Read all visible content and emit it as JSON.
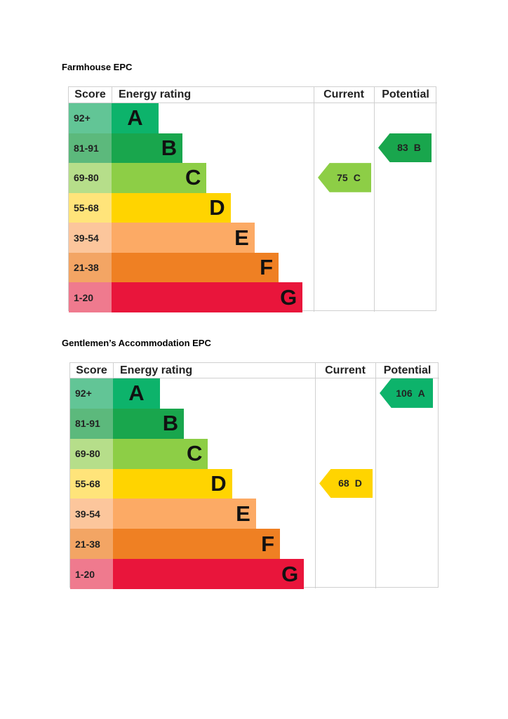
{
  "sections": [
    {
      "title": "Farmhouse EPC",
      "headers": {
        "score": "Score",
        "rating": "Energy rating",
        "current": "Current",
        "potential": "Potential"
      },
      "bands": [
        {
          "score": "92+",
          "letter": "A"
        },
        {
          "score": "81-91",
          "letter": "B"
        },
        {
          "score": "69-80",
          "letter": "C"
        },
        {
          "score": "55-68",
          "letter": "D"
        },
        {
          "score": "39-54",
          "letter": "E"
        },
        {
          "score": "21-38",
          "letter": "F"
        },
        {
          "score": "1-20",
          "letter": "G"
        }
      ],
      "current": {
        "score": "75",
        "letter": "C"
      },
      "potential": {
        "score": "83",
        "letter": "B"
      }
    },
    {
      "title": "Gentlemen’s Accommodation EPC",
      "headers": {
        "score": "Score",
        "rating": "Energy rating",
        "current": "Current",
        "potential": "Potential"
      },
      "bands": [
        {
          "score": "92+",
          "letter": "A"
        },
        {
          "score": "81-91",
          "letter": "B"
        },
        {
          "score": "69-80",
          "letter": "C"
        },
        {
          "score": "55-68",
          "letter": "D"
        },
        {
          "score": "39-54",
          "letter": "E"
        },
        {
          "score": "21-38",
          "letter": "F"
        },
        {
          "score": "1-20",
          "letter": "G"
        }
      ],
      "current": {
        "score": "68",
        "letter": "D"
      },
      "potential": {
        "score": "106",
        "letter": "A"
      }
    }
  ]
}
